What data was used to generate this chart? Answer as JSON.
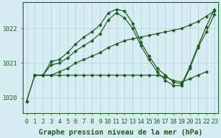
{
  "background_color": "#d6eef3",
  "grid_color": "#aacdd8",
  "line_color": "#1e5c1e",
  "xlabel": "Graphe pression niveau de la mer (hPa)",
  "xlabel_fontsize": 7.5,
  "tick_fontsize": 6.5,
  "ytick_labels": [
    "1020",
    "1021",
    "1022"
  ],
  "ytick_values": [
    1020,
    1021,
    1022
  ],
  "ylim": [
    1019.55,
    1022.75
  ],
  "xlim": [
    -0.5,
    23.5
  ],
  "xtick_values": [
    0,
    1,
    2,
    3,
    4,
    5,
    6,
    7,
    8,
    9,
    10,
    11,
    12,
    13,
    14,
    15,
    16,
    17,
    18,
    19,
    20,
    21,
    22,
    23
  ],
  "lines": [
    {
      "x": [
        0,
        1,
        2,
        3,
        4,
        5,
        6,
        7,
        8,
        9,
        10,
        11,
        12,
        13,
        14,
        15,
        16,
        17,
        18,
        19,
        20,
        21,
        22,
        23
      ],
      "y": [
        1019.9,
        1020.65,
        1020.65,
        1021.05,
        1021.1,
        1021.3,
        1021.55,
        1021.75,
        1021.9,
        1022.1,
        1022.45,
        1022.55,
        1022.5,
        1022.15,
        1021.6,
        1021.2,
        1020.85,
        1020.65,
        1020.45,
        1020.4,
        1020.9,
        1021.5,
        1022.05,
        1022.55
      ],
      "marker": "D",
      "markersize": 2.5,
      "linewidth": 0.9,
      "linestyle": "-"
    },
    {
      "x": [
        1,
        2,
        3,
        4,
        5,
        6,
        7,
        8,
        9,
        10,
        11,
        12,
        13,
        14,
        15,
        16,
        17,
        18,
        19,
        20,
        21,
        22,
        23
      ],
      "y": [
        1020.65,
        1020.65,
        1020.65,
        1020.75,
        1020.85,
        1021.0,
        1021.1,
        1021.2,
        1021.3,
        1021.45,
        1021.55,
        1021.65,
        1021.7,
        1021.75,
        1021.8,
        1021.85,
        1021.9,
        1021.95,
        1022.0,
        1022.1,
        1022.2,
        1022.35,
        1022.5
      ],
      "marker": "D",
      "markersize": 2.5,
      "linewidth": 0.9,
      "linestyle": "-"
    },
    {
      "x": [
        1,
        2,
        3,
        4,
        5,
        6,
        7,
        8,
        9,
        10,
        11,
        12,
        13,
        14,
        15,
        16,
        17,
        18,
        19,
        20,
        21,
        22
      ],
      "y": [
        1020.65,
        1020.65,
        1020.65,
        1020.65,
        1020.65,
        1020.65,
        1020.65,
        1020.65,
        1020.65,
        1020.65,
        1020.65,
        1020.65,
        1020.65,
        1020.65,
        1020.65,
        1020.65,
        1020.6,
        1020.5,
        1020.45,
        1020.55,
        1020.65,
        1020.75
      ],
      "marker": "D",
      "markersize": 2.5,
      "linewidth": 0.9,
      "linestyle": "-"
    },
    {
      "x": [
        0,
        1,
        2,
        3,
        4,
        5,
        6,
        7,
        8,
        9,
        10,
        11,
        12,
        13,
        14,
        15,
        16,
        17,
        18,
        19,
        20,
        21,
        22,
        23
      ],
      "y": [
        1019.9,
        1020.65,
        1020.65,
        1020.95,
        1021.0,
        1021.15,
        1021.35,
        1021.5,
        1021.65,
        1021.85,
        1022.25,
        1022.45,
        1022.3,
        1022.0,
        1021.5,
        1021.1,
        1020.75,
        1020.5,
        1020.35,
        1020.35,
        1020.85,
        1021.45,
        1021.9,
        1022.4
      ],
      "marker": "D",
      "markersize": 2.5,
      "linewidth": 0.9,
      "linestyle": "-"
    }
  ]
}
